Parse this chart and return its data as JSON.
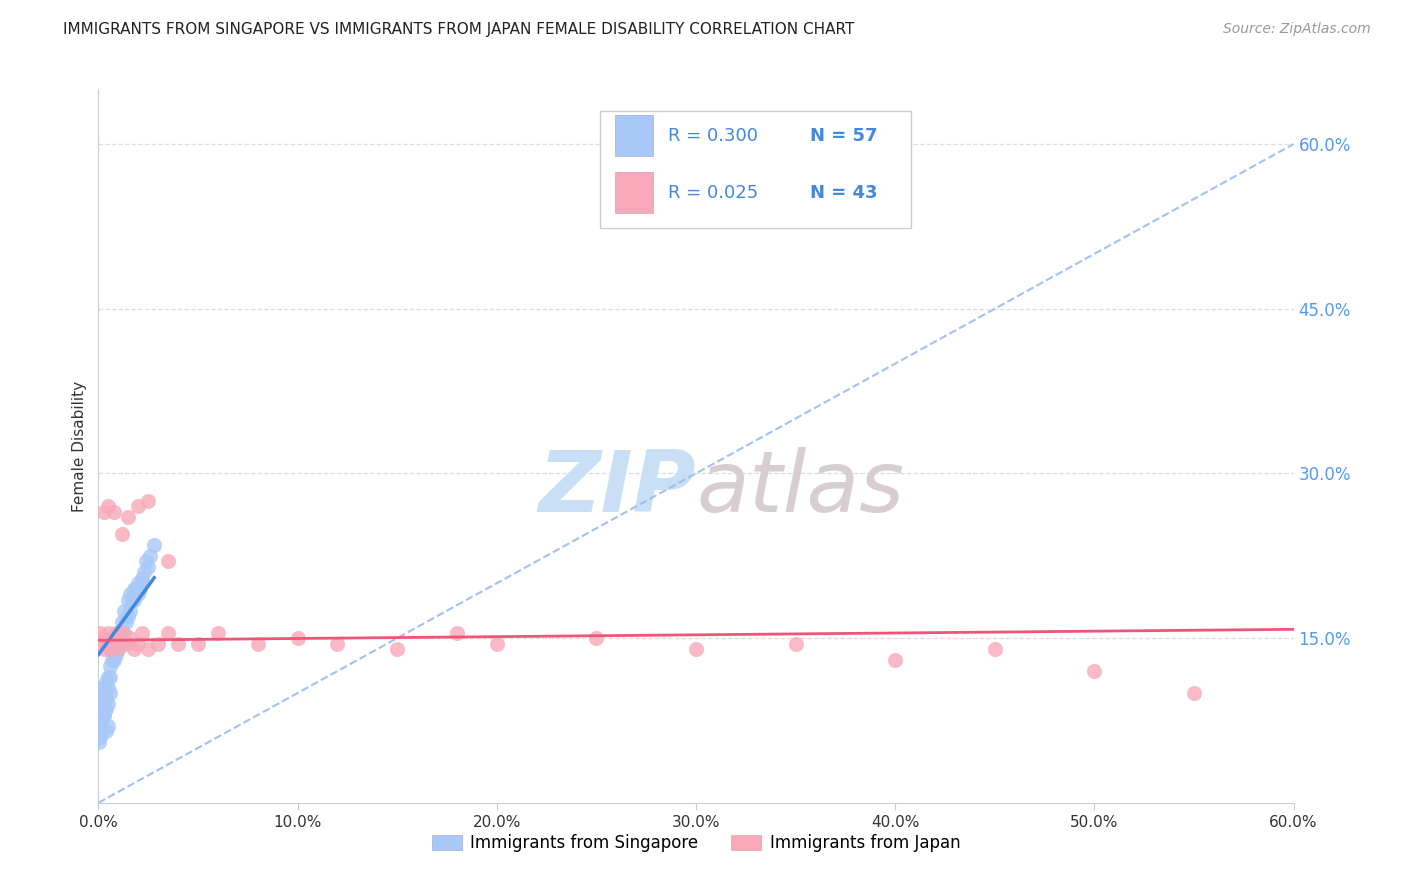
{
  "title": "IMMIGRANTS FROM SINGAPORE VS IMMIGRANTS FROM JAPAN FEMALE DISABILITY CORRELATION CHART",
  "source": "Source: ZipAtlas.com",
  "ylabel_left": "Female Disability",
  "legend_label1": "Immigrants from Singapore",
  "legend_label2": "Immigrants from Japan",
  "R1": 0.3,
  "N1": 57,
  "R2": 0.025,
  "N2": 43,
  "color1": "#a8c8f8",
  "color2": "#f8a8b8",
  "trend1_color": "#4488dd",
  "trend2_color": "#ee5577",
  "dashed_line_color": "#99bbee",
  "watermark_zip_color": "#c8dff5",
  "watermark_atlas_color": "#d8ced0",
  "xlim": [
    0.0,
    0.6
  ],
  "ylim": [
    0.0,
    0.65
  ],
  "xticks": [
    0.0,
    0.1,
    0.2,
    0.3,
    0.4,
    0.5,
    0.6
  ],
  "yticks_right": [
    0.15,
    0.3,
    0.45,
    0.6
  ],
  "ytick_labels_right": [
    "15.0%",
    "30.0%",
    "45.0%",
    "60.0%"
  ],
  "xtick_labels": [
    "0.0%",
    "10.0%",
    "20.0%",
    "30.0%",
    "40.0%",
    "50.0%",
    "60.0%"
  ],
  "scatter1_x": [
    0.001,
    0.0015,
    0.002,
    0.002,
    0.003,
    0.003,
    0.003,
    0.004,
    0.004,
    0.004,
    0.005,
    0.005,
    0.005,
    0.006,
    0.006,
    0.006,
    0.007,
    0.007,
    0.008,
    0.008,
    0.009,
    0.009,
    0.01,
    0.01,
    0.011,
    0.011,
    0.012,
    0.012,
    0.013,
    0.013,
    0.014,
    0.015,
    0.015,
    0.016,
    0.016,
    0.017,
    0.018,
    0.018,
    0.019,
    0.02,
    0.02,
    0.021,
    0.022,
    0.022,
    0.023,
    0.024,
    0.025,
    0.026,
    0.028,
    0.001,
    0.001,
    0.0005,
    0.0005,
    0.002,
    0.003,
    0.004,
    0.005
  ],
  "scatter1_y": [
    0.085,
    0.075,
    0.095,
    0.105,
    0.08,
    0.09,
    0.1,
    0.085,
    0.095,
    0.11,
    0.09,
    0.105,
    0.115,
    0.1,
    0.115,
    0.125,
    0.13,
    0.14,
    0.13,
    0.145,
    0.135,
    0.145,
    0.14,
    0.155,
    0.145,
    0.155,
    0.15,
    0.165,
    0.155,
    0.175,
    0.165,
    0.17,
    0.185,
    0.175,
    0.19,
    0.185,
    0.185,
    0.195,
    0.195,
    0.19,
    0.2,
    0.195,
    0.2,
    0.205,
    0.21,
    0.22,
    0.215,
    0.225,
    0.235,
    0.06,
    0.065,
    0.055,
    0.07,
    0.075,
    0.08,
    0.065,
    0.07
  ],
  "scatter2_x": [
    0.001,
    0.002,
    0.003,
    0.004,
    0.005,
    0.006,
    0.007,
    0.008,
    0.009,
    0.01,
    0.012,
    0.014,
    0.016,
    0.018,
    0.02,
    0.022,
    0.025,
    0.03,
    0.035,
    0.04,
    0.05,
    0.06,
    0.08,
    0.1,
    0.12,
    0.15,
    0.18,
    0.2,
    0.25,
    0.3,
    0.35,
    0.4,
    0.45,
    0.5,
    0.003,
    0.005,
    0.008,
    0.012,
    0.015,
    0.02,
    0.025,
    0.035,
    0.55
  ],
  "scatter2_y": [
    0.155,
    0.15,
    0.14,
    0.145,
    0.155,
    0.14,
    0.145,
    0.15,
    0.155,
    0.14,
    0.155,
    0.145,
    0.15,
    0.14,
    0.145,
    0.155,
    0.14,
    0.145,
    0.155,
    0.145,
    0.145,
    0.155,
    0.145,
    0.15,
    0.145,
    0.14,
    0.155,
    0.145,
    0.15,
    0.14,
    0.145,
    0.13,
    0.14,
    0.12,
    0.265,
    0.27,
    0.265,
    0.245,
    0.26,
    0.27,
    0.275,
    0.22,
    0.1
  ],
  "trend1_x_start": 0.0,
  "trend1_x_end": 0.028,
  "trend1_y_start": 0.135,
  "trend1_y_end": 0.205,
  "trend2_x_start": 0.0,
  "trend2_x_end": 0.6,
  "trend2_y_start": 0.148,
  "trend2_y_end": 0.158
}
